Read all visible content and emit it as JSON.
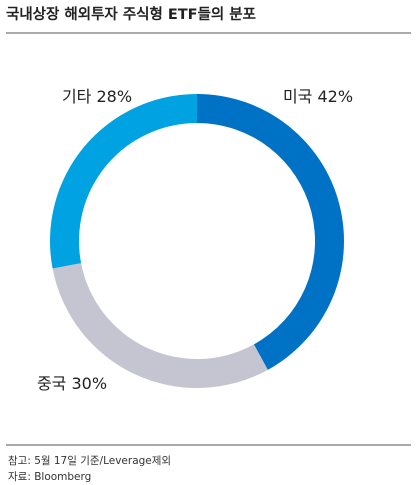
{
  "chart_data": {
    "type": "donut",
    "title": "국내상장 해외투자 주식형 ETF들의 분포",
    "categories": [
      "미국",
      "중국",
      "기타"
    ],
    "values": [
      42,
      30,
      28
    ],
    "value_labels": [
      "42%",
      "30%",
      "28%"
    ],
    "colors": [
      "#0072c6",
      "#c4c5d1",
      "#00a2e1"
    ],
    "note": "참고: 5월 17일 기준/Leverage제외",
    "source": "자료: Bloomberg"
  }
}
